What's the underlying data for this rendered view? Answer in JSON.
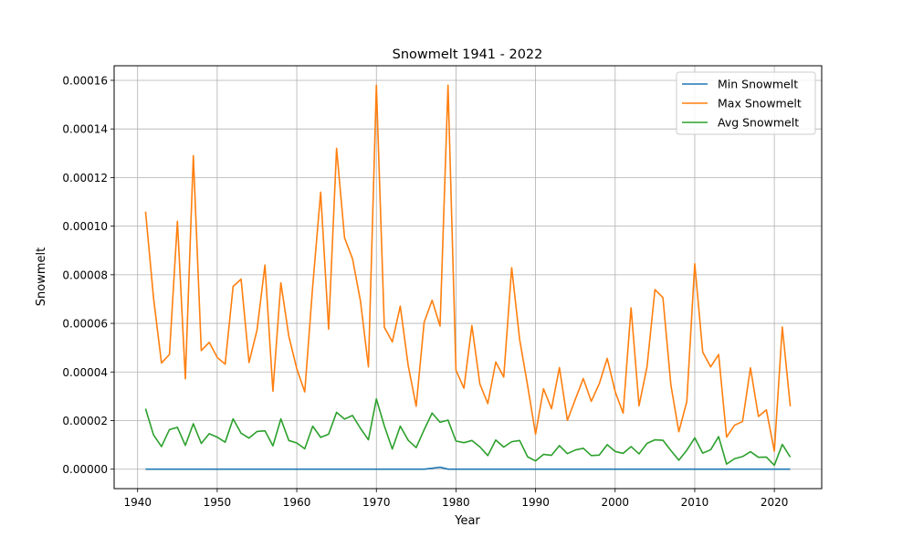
{
  "chart_data": {
    "type": "line",
    "title": "Snowmelt 1941 - 2022",
    "xlabel": "Year",
    "ylabel": "Snowmelt",
    "xlim": [
      1937.05,
      2025.95
    ],
    "ylim": [
      -8e-06,
      0.000166
    ],
    "xticks": [
      1940,
      1950,
      1960,
      1970,
      1980,
      1990,
      2000,
      2010,
      2020
    ],
    "yticks": [
      0,
      2e-05,
      4e-05,
      6e-05,
      8e-05,
      0.0001,
      0.00012,
      0.00014,
      0.00016
    ],
    "ytick_labels": [
      "0.00000",
      "0.00002",
      "0.00004",
      "0.00006",
      "0.00008",
      "0.00010",
      "0.00012",
      "0.00014",
      "0.00016"
    ],
    "grid": true,
    "legend_position": "top-right",
    "x": [
      1941,
      1942,
      1943,
      1944,
      1945,
      1946,
      1947,
      1948,
      1949,
      1950,
      1951,
      1952,
      1953,
      1954,
      1955,
      1956,
      1957,
      1958,
      1959,
      1960,
      1961,
      1962,
      1963,
      1964,
      1965,
      1966,
      1967,
      1968,
      1969,
      1970,
      1971,
      1972,
      1973,
      1974,
      1975,
      1976,
      1977,
      1978,
      1979,
      1980,
      1981,
      1982,
      1983,
      1984,
      1985,
      1986,
      1987,
      1988,
      1989,
      1990,
      1991,
      1992,
      1993,
      1994,
      1995,
      1996,
      1997,
      1998,
      1999,
      2000,
      2001,
      2002,
      2003,
      2004,
      2005,
      2006,
      2007,
      2008,
      2009,
      2010,
      2011,
      2012,
      2013,
      2014,
      2015,
      2016,
      2017,
      2018,
      2019,
      2020,
      2021,
      2022
    ],
    "series": [
      {
        "name": "Min Snowmelt",
        "color": "#1f77b4",
        "values": [
          0,
          0,
          0,
          0,
          0,
          0,
          0,
          0,
          0,
          0,
          0,
          0,
          0,
          0,
          0,
          0,
          0,
          0,
          0,
          0,
          0,
          0,
          0,
          0,
          0,
          0,
          0,
          0,
          0,
          0,
          0,
          0,
          0,
          0,
          0,
          0,
          4e-07,
          8e-07,
          0,
          0,
          0,
          0,
          0,
          0,
          0,
          0,
          0,
          0,
          0,
          0,
          0,
          0,
          0,
          0,
          0,
          0,
          0,
          0,
          0,
          0,
          0,
          0,
          0,
          0,
          0,
          0,
          0,
          0,
          0,
          0,
          0,
          0,
          0,
          0,
          0,
          0,
          0,
          0,
          0,
          0,
          0,
          0
        ]
      },
      {
        "name": "Max Snowmelt",
        "color": "#ff7f0e",
        "values": [
          0.000106,
          7.05e-05,
          4.37e-05,
          4.72e-05,
          0.000102,
          3.72e-05,
          0.000129,
          4.88e-05,
          5.22e-05,
          4.6e-05,
          4.32e-05,
          7.52e-05,
          7.82e-05,
          4.39e-05,
          5.72e-05,
          8.4e-05,
          3.21e-05,
          7.67e-05,
          5.47e-05,
          4.13e-05,
          3.18e-05,
          7.53e-05,
          0.000114,
          5.76e-05,
          0.000132,
          9.52e-05,
          8.66e-05,
          6.92e-05,
          4.21e-05,
          0.000158,
          5.84e-05,
          5.24e-05,
          6.71e-05,
          4.26e-05,
          2.59e-05,
          6.04e-05,
          6.95e-05,
          5.89e-05,
          0.000158,
          4.07e-05,
          3.33e-05,
          5.91e-05,
          3.51e-05,
          2.7e-05,
          4.41e-05,
          3.79e-05,
          8.29e-05,
          5.34e-05,
          3.44e-05,
          1.44e-05,
          3.31e-05,
          2.49e-05,
          4.18e-05,
          2.01e-05,
          2.88e-05,
          3.73e-05,
          2.79e-05,
          3.51e-05,
          4.56e-05,
          3.19e-05,
          2.31e-05,
          6.64e-05,
          2.61e-05,
          4.21e-05,
          7.39e-05,
          7.06e-05,
          3.47e-05,
          1.54e-05,
          2.78e-05,
          8.45e-05,
          4.82e-05,
          4.21e-05,
          4.72e-05,
          1.32e-05,
          1.81e-05,
          1.96e-05,
          4.17e-05,
          2.17e-05,
          2.44e-05,
          7.4e-06,
          5.85e-05,
          2.59e-05
        ]
      },
      {
        "name": "Avg Snowmelt",
        "color": "#2ca02c",
        "values": [
          2.49e-05,
          1.41e-05,
          9.3e-06,
          1.63e-05,
          1.72e-05,
          9.8e-06,
          1.87e-05,
          1.06e-05,
          1.46e-05,
          1.32e-05,
          1.11e-05,
          2.07e-05,
          1.48e-05,
          1.28e-05,
          1.55e-05,
          1.58e-05,
          9.6e-06,
          2.07e-05,
          1.18e-05,
          1.08e-05,
          8.4e-06,
          1.77e-05,
          1.31e-05,
          1.44e-05,
          2.34e-05,
          2.06e-05,
          2.21e-05,
          1.68e-05,
          1.21e-05,
          2.89e-05,
          1.78e-05,
          8.3e-06,
          1.77e-05,
          1.19e-05,
          8.9e-06,
          1.62e-05,
          2.31e-05,
          1.93e-05,
          2.02e-05,
          1.16e-05,
          1.09e-05,
          1.18e-05,
          9.2e-06,
          5.6e-06,
          1.2e-05,
          9.1e-06,
          1.13e-05,
          1.18e-05,
          5.1e-06,
          3.4e-06,
          6.1e-06,
          5.7e-06,
          9.7e-06,
          6.4e-06,
          7.9e-06,
          8.6e-06,
          5.6e-06,
          5.8e-06,
          1.01e-05,
          7.3e-06,
          6.5e-06,
          9.3e-06,
          6.3e-06,
          1.06e-05,
          1.21e-05,
          1.19e-05,
          7.7e-06,
          3.7e-06,
          7.8e-06,
          1.29e-05,
          6.6e-06,
          8e-06,
          1.34e-05,
          2.1e-06,
          4.3e-06,
          5.2e-06,
          7.2e-06,
          4.9e-06,
          5e-06,
          1.6e-06,
          1.02e-05,
          5e-06
        ]
      }
    ]
  }
}
